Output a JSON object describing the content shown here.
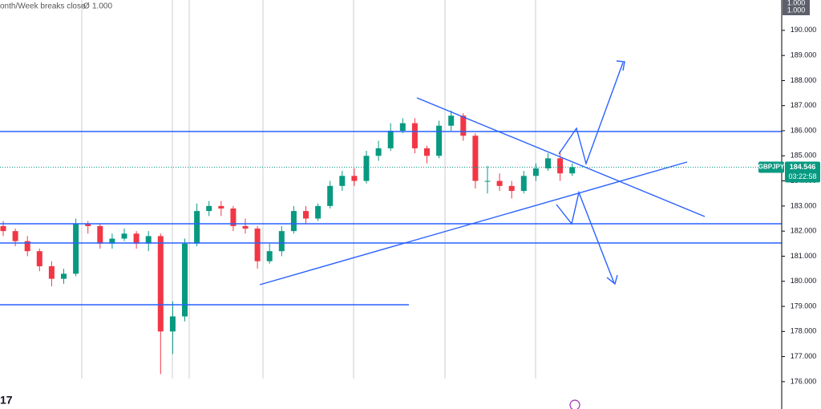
{
  "chart_data": {
    "type": "candlestick",
    "indicator": {
      "name": "onth/Week breaks close",
      "icon": "Ø",
      "value_label": "1.000"
    },
    "scale_box": [
      "1.000",
      "1.000"
    ],
    "categories": [
      null,
      null,
      null,
      null,
      null,
      null,
      null,
      null,
      null,
      null,
      null,
      null,
      null,
      null,
      null,
      null,
      null,
      null,
      null,
      null,
      null,
      null,
      null,
      null,
      null,
      null,
      null,
      null,
      null,
      null,
      null,
      null,
      null,
      null,
      null,
      null,
      null,
      null,
      null,
      null,
      null,
      null,
      null,
      null,
      null,
      null,
      null,
      null
    ],
    "open": [
      182.2,
      182.0,
      181.6,
      181.2,
      180.6,
      180.1,
      180.3,
      182.3,
      182.2,
      181.5,
      181.7,
      181.9,
      181.5,
      181.8,
      178.0,
      178.6,
      181.5,
      182.8,
      183.0,
      182.9,
      182.2,
      182.1,
      180.8,
      181.2,
      182.0,
      182.8,
      182.5,
      183.0,
      183.8,
      184.2,
      184.0,
      185.0,
      185.3,
      186.0,
      186.3,
      185.3,
      185.0,
      186.2,
      186.6,
      185.8,
      184.0,
      184.0,
      183.8,
      183.6,
      184.2,
      184.5,
      184.9,
      184.3
    ],
    "high": [
      182.4,
      182.1,
      181.8,
      181.3,
      180.8,
      180.5,
      182.5,
      182.4,
      182.3,
      181.9,
      182.1,
      182.0,
      182.0,
      181.9,
      179.2,
      181.7,
      183.1,
      183.2,
      183.2,
      183.0,
      182.5,
      182.2,
      181.5,
      182.2,
      183.0,
      183.0,
      183.1,
      184.0,
      184.4,
      184.5,
      185.2,
      185.6,
      186.3,
      186.5,
      186.5,
      185.4,
      186.4,
      186.8,
      186.7,
      185.9,
      184.6,
      184.3,
      184.0,
      184.4,
      184.7,
      185.1,
      185.2,
      184.7
    ],
    "low": [
      181.8,
      181.4,
      181.0,
      180.4,
      179.8,
      179.9,
      180.2,
      181.9,
      181.3,
      181.3,
      181.6,
      181.3,
      181.2,
      176.3,
      177.1,
      178.4,
      181.4,
      182.6,
      182.6,
      182.0,
      181.9,
      180.5,
      180.7,
      181.0,
      181.9,
      182.3,
      182.4,
      182.9,
      183.6,
      183.8,
      183.9,
      184.8,
      185.2,
      185.9,
      185.1,
      184.7,
      184.9,
      186.0,
      185.6,
      183.7,
      183.5,
      183.6,
      183.3,
      183.5,
      184.0,
      184.4,
      184.0,
      184.2
    ],
    "close": [
      182.0,
      181.6,
      181.2,
      180.6,
      180.1,
      180.3,
      182.3,
      182.2,
      181.5,
      181.7,
      181.9,
      181.5,
      181.8,
      178.0,
      178.6,
      181.5,
      182.8,
      183.0,
      182.9,
      182.2,
      182.1,
      180.8,
      181.2,
      182.0,
      182.8,
      182.5,
      183.0,
      183.8,
      184.2,
      184.0,
      185.0,
      185.3,
      186.0,
      186.3,
      185.3,
      185.0,
      186.2,
      186.6,
      185.8,
      184.0,
      184.0,
      183.8,
      183.6,
      184.2,
      184.5,
      184.9,
      184.3,
      184.546
    ],
    "up_color": "#089981",
    "down_color": "#f23645",
    "ylim": [
      174.91,
      191.21
    ],
    "yticks": [
      {
        "value": 176,
        "label": "176.000"
      },
      {
        "value": 177,
        "label": "177.000"
      },
      {
        "value": 178,
        "label": "178.000"
      },
      {
        "value": 179,
        "label": "179.000"
      },
      {
        "value": 180,
        "label": "180.000"
      },
      {
        "value": 181,
        "label": "181.000"
      },
      {
        "value": 182,
        "label": "182.000"
      },
      {
        "value": 183,
        "label": "183.000"
      },
      {
        "value": 184,
        "label": "184.000"
      },
      {
        "value": 185,
        "label": "185.000"
      },
      {
        "value": 186,
        "label": "186.000"
      },
      {
        "value": 187,
        "label": "187.000"
      },
      {
        "value": 188,
        "label": "188.000"
      },
      {
        "value": 189,
        "label": "189.000"
      },
      {
        "value": 190,
        "label": "190.000"
      }
    ],
    "price_tag": {
      "symbol": "GBPJPY",
      "value": 184.546,
      "label": "184.546",
      "countdown": "03:22:58",
      "color": "#089981"
    }
  }
}
